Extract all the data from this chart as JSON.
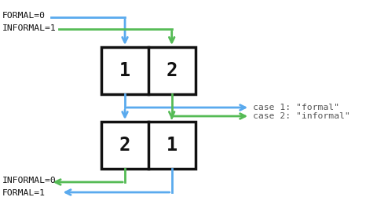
{
  "bg_color": "#ffffff",
  "blue_color": "#5aaaee",
  "green_color": "#55bb55",
  "black_color": "#111111",
  "gray_color": "#555555",
  "top_left_text": [
    "FORMAL=0",
    "INFORMAL=1"
  ],
  "bot_left_text": [
    "INFORMAL=0",
    "FORMAL=1"
  ],
  "right_texts": [
    "case 1: \"formal\"",
    "case 2: \"informal\""
  ],
  "top_labels": [
    "1",
    "2"
  ],
  "bot_labels": [
    "2",
    "1"
  ],
  "font_family": "monospace"
}
